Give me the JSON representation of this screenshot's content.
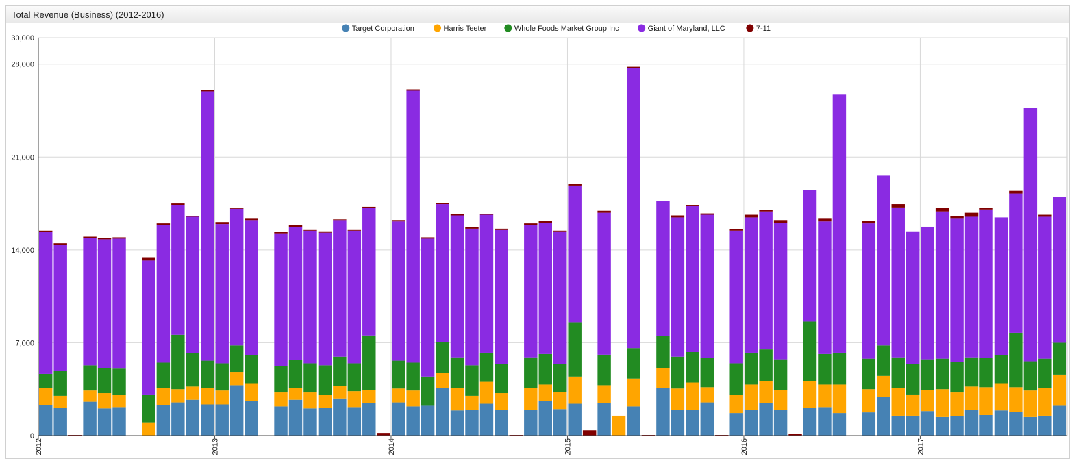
{
  "window": {
    "title": "Total Revenue (Business) (2012-2016)"
  },
  "legend": [
    {
      "name": "Target Corporation",
      "color": "#4682b4"
    },
    {
      "name": "Harris Teeter",
      "color": "#ffa500"
    },
    {
      "name": "Whole Foods Market Group Inc",
      "color": "#228b22"
    },
    {
      "name": "Giant of Maryland, LLC",
      "color": "#8a2be2"
    },
    {
      "name": "7-11",
      "color": "#800000"
    }
  ],
  "chart_data": {
    "type": "bar",
    "stacked": true,
    "title": "Total Revenue (Business) (2012-2016)",
    "ylim": [
      0,
      30000
    ],
    "yticks": [
      0,
      7000,
      14000,
      21000,
      28000,
      30000
    ],
    "ytick_labels": [
      "0",
      "7,000",
      "14,000",
      "21,000",
      "28,000",
      "30,000"
    ],
    "xlim": [
      "2012-01",
      "2017-01"
    ],
    "xticks": [
      "2012",
      "2013",
      "2014",
      "2015",
      "2016",
      "2017"
    ],
    "grid": true,
    "legend_position": "top",
    "series": [
      {
        "name": "Target Corporation",
        "color": "#4682b4",
        "values": [
          2300,
          2100,
          0,
          2550,
          2050,
          2150,
          0,
          0,
          2300,
          2500,
          2700,
          2350,
          2350,
          3800,
          2600,
          0,
          2200,
          2700,
          2050,
          2100,
          2800,
          2150,
          2450,
          0,
          2500,
          2200,
          2250,
          3600,
          1900,
          1950,
          2400,
          1950,
          0,
          1950,
          2600,
          2000,
          2400,
          0,
          2450,
          0,
          2200,
          0,
          3600,
          1950,
          1950,
          2500,
          0,
          1700,
          1950,
          2450,
          1950,
          0,
          2100,
          2150,
          1700,
          0,
          1750,
          2900,
          1500,
          1500,
          1850,
          1400,
          1450,
          1950,
          1550,
          1900,
          1800,
          1400,
          1500,
          2250
        ]
      },
      {
        "name": "Harris Teeter",
        "color": "#ffa500",
        "values": [
          1300,
          900,
          0,
          850,
          1150,
          900,
          0,
          1000,
          1300,
          1000,
          1000,
          1250,
          1050,
          1000,
          1350,
          0,
          1050,
          900,
          1200,
          950,
          950,
          1200,
          1000,
          0,
          1050,
          1200,
          0,
          1150,
          1700,
          1050,
          1650,
          1250,
          0,
          1650,
          1250,
          1300,
          2050,
          0,
          1350,
          1500,
          2100,
          0,
          1500,
          1600,
          2050,
          1150,
          0,
          1350,
          1900,
          1650,
          1500,
          0,
          2000,
          1700,
          2150,
          0,
          1750,
          1600,
          2100,
          1600,
          1600,
          2100,
          1800,
          1750,
          2100,
          2050,
          1850,
          2000,
          2100,
          2350
        ]
      },
      {
        "name": "Whole Foods Market Group Inc",
        "color": "#228b22",
        "values": [
          1050,
          1900,
          0,
          1900,
          1900,
          2000,
          0,
          2100,
          1900,
          4100,
          2500,
          2050,
          2050,
          2000,
          2100,
          0,
          2000,
          2100,
          2200,
          2250,
          2200,
          2100,
          4100,
          0,
          2100,
          2100,
          2200,
          2300,
          2300,
          2300,
          2200,
          2200,
          0,
          2300,
          2300,
          2100,
          4100,
          0,
          2300,
          0,
          2300,
          0,
          2400,
          2400,
          2300,
          2200,
          0,
          2400,
          2400,
          2400,
          2300,
          0,
          4500,
          2300,
          2400,
          0,
          2300,
          2300,
          2300,
          2300,
          2300,
          2300,
          2300,
          2200,
          2200,
          2100,
          4100,
          2200,
          2200,
          2400
        ]
      },
      {
        "name": "Giant of Maryland, LLC",
        "color": "#8a2be2",
        "values": [
          10700,
          9500,
          0,
          9600,
          9700,
          9800,
          0,
          10100,
          10400,
          9800,
          10300,
          20300,
          10500,
          10300,
          10200,
          0,
          10000,
          10000,
          10000,
          10000,
          10300,
          10000,
          9600,
          0,
          10500,
          20500,
          10400,
          10400,
          10700,
          10300,
          10400,
          10100,
          0,
          10000,
          9900,
          10000,
          10300,
          0,
          10700,
          0,
          21100,
          0,
          10200,
          10500,
          11000,
          10800,
          0,
          10000,
          10200,
          10400,
          10300,
          0,
          9900,
          10000,
          19500,
          0,
          10200,
          12800,
          11300,
          10000,
          10000,
          11100,
          10800,
          10600,
          11200,
          10400,
          10500,
          19100,
          10700,
          11000
        ]
      },
      {
        "name": "7-11",
        "color": "#800000",
        "values": [
          100,
          100,
          50,
          100,
          100,
          100,
          0,
          250,
          100,
          100,
          50,
          100,
          150,
          50,
          100,
          0,
          100,
          200,
          50,
          100,
          50,
          50,
          100,
          200,
          100,
          100,
          100,
          100,
          100,
          100,
          50,
          100,
          50,
          100,
          150,
          50,
          150,
          400,
          150,
          0,
          100,
          50,
          0,
          150,
          50,
          100,
          50,
          100,
          200,
          100,
          200,
          150,
          0,
          200,
          0,
          0,
          200,
          0,
          250,
          0,
          0,
          250,
          200,
          300,
          100,
          0,
          200,
          0,
          150,
          0
        ]
      }
    ]
  }
}
